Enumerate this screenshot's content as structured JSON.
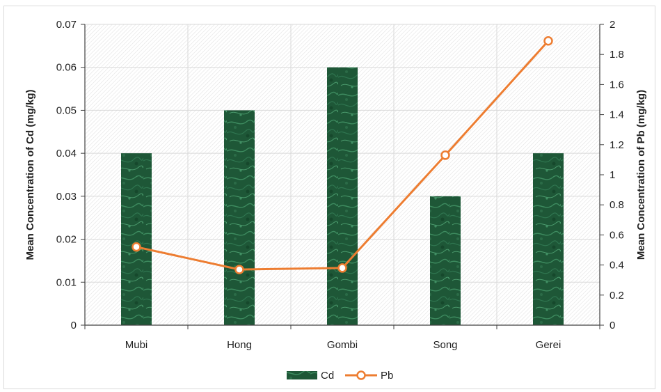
{
  "chart_data": {
    "type": "bar+line",
    "categories": [
      "Mubi",
      "Hong",
      "Gombi",
      "Song",
      "Gerei"
    ],
    "series": [
      {
        "name": "Cd",
        "type": "bar",
        "axis": "left",
        "values": [
          0.04,
          0.05,
          0.06,
          0.03,
          0.04
        ]
      },
      {
        "name": "Pb",
        "type": "line",
        "axis": "right",
        "values": [
          0.52,
          0.37,
          0.38,
          1.13,
          1.89
        ]
      }
    ],
    "ylabel_left": "Mean Concentration of Cd (mg/kg)",
    "ylabel_right": "Mean Concentration of Pb (mg/kg)",
    "ylim_left": [
      0,
      0.07
    ],
    "ylim_right": [
      0,
      2
    ],
    "yticks_left": [
      "0",
      "0.01",
      "0.02",
      "0.03",
      "0.04",
      "0.05",
      "0.06",
      "0.07"
    ],
    "yticks_right": [
      "0",
      "0.2",
      "0.4",
      "0.6",
      "0.8",
      "1",
      "1.2",
      "1.4",
      "1.6",
      "1.8",
      "2"
    ],
    "grid": true,
    "legend_position": "bottom",
    "colors": {
      "bar": "#1f5a3a",
      "bar_highlight": "#3c8a5e",
      "line": "#ed7d31",
      "grid": "#d9d9d9"
    }
  }
}
